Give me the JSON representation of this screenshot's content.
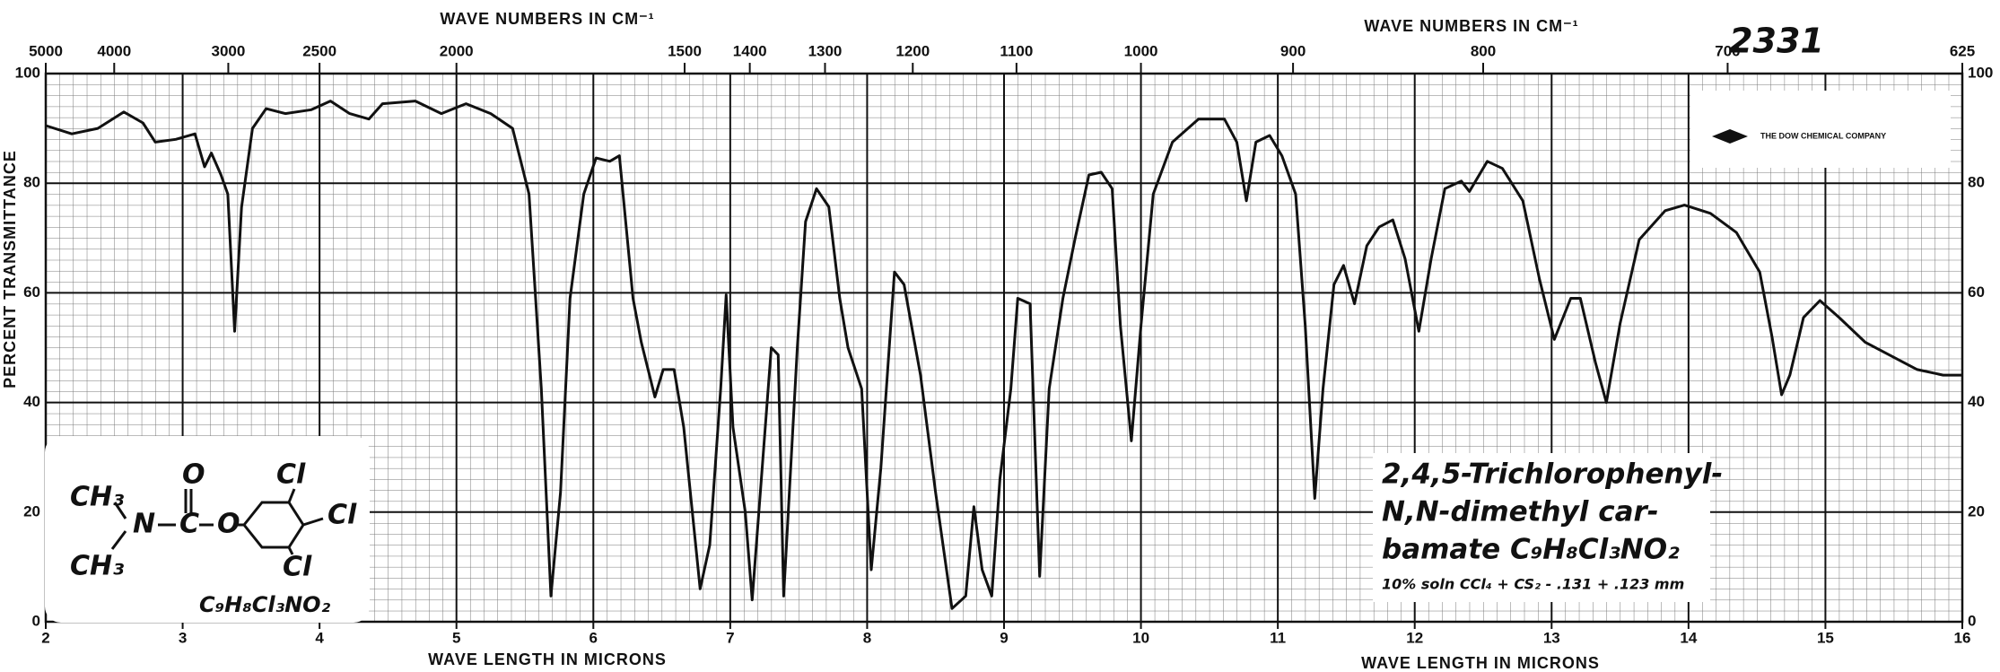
{
  "chart_data": {
    "type": "line",
    "x2labels": [
      "WAVE NUMBERS IN CM⁻¹",
      "WAVE NUMBERS IN CM⁻¹"
    ],
    "xlabels": [
      "WAVE LENGTH IN MICRONS",
      "WAVE LENGTH IN MICRONS"
    ],
    "ylabel": "PERCENT TRANSMITTANCE",
    "xlim": [
      2,
      16
    ],
    "xticks": [
      2,
      3,
      4,
      5,
      6,
      7,
      8,
      9,
      10,
      11,
      12,
      13,
      14,
      15,
      16
    ],
    "x2ticks": [
      5000,
      4000,
      3000,
      2500,
      2000,
      1500,
      1400,
      1300,
      1200,
      1100,
      1000,
      900,
      800,
      700,
      625
    ],
    "ylim": [
      0,
      100
    ],
    "yticks": [
      0,
      20,
      40,
      60,
      80,
      100
    ],
    "grid": true,
    "color": "#111111",
    "x": [
      2.0,
      2.19,
      2.38,
      2.57,
      2.71,
      2.8,
      2.95,
      3.09,
      3.16,
      3.21,
      3.28,
      3.33,
      3.38,
      3.43,
      3.51,
      3.61,
      3.75,
      3.94,
      4.08,
      4.22,
      4.36,
      4.46,
      4.7,
      4.89,
      5.07,
      5.25,
      5.41,
      5.53,
      5.62,
      5.69,
      5.76,
      5.83,
      5.93,
      6.02,
      6.12,
      6.19,
      6.29,
      6.35,
      6.45,
      6.51,
      6.59,
      6.66,
      6.78,
      6.85,
      6.93,
      6.97,
      7.02,
      7.11,
      7.16,
      7.22,
      7.3,
      7.35,
      7.39,
      7.49,
      7.55,
      7.63,
      7.72,
      7.8,
      7.86,
      7.96,
      8.03,
      8.1,
      8.2,
      8.27,
      8.39,
      8.5,
      8.62,
      8.72,
      8.78,
      8.84,
      8.91,
      8.97,
      9.05,
      9.1,
      9.19,
      9.26,
      9.33,
      9.43,
      9.52,
      9.62,
      9.71,
      9.79,
      9.85,
      9.93,
      10.0,
      10.09,
      10.23,
      10.42,
      10.61,
      10.7,
      10.77,
      10.84,
      10.94,
      11.03,
      11.13,
      11.2,
      11.27,
      11.33,
      11.41,
      11.48,
      11.56,
      11.65,
      11.74,
      11.84,
      11.93,
      12.03,
      12.12,
      12.22,
      12.34,
      12.4,
      12.53,
      12.64,
      12.79,
      12.91,
      13.02,
      13.14,
      13.21,
      13.32,
      13.4,
      13.5,
      13.64,
      13.83,
      13.97,
      14.16,
      14.35,
      14.52,
      14.61,
      14.68,
      14.74,
      14.84,
      14.96,
      15.1,
      15.29,
      15.48,
      15.67,
      15.86,
      16.0
    ],
    "values": [
      90.5,
      89,
      90,
      93,
      91,
      87.5,
      88,
      89,
      83,
      85.5,
      81.5,
      78,
      53,
      75.6,
      90,
      93.6,
      92.7,
      93.4,
      95,
      92.7,
      91.7,
      94.5,
      95,
      92.7,
      94.5,
      92.7,
      90,
      78,
      42.5,
      4.7,
      23.6,
      59,
      78,
      84.6,
      84,
      85,
      59,
      51,
      41,
      46,
      46,
      35.5,
      6,
      14,
      42.5,
      59.6,
      35.5,
      20,
      4,
      23.6,
      50,
      48.7,
      4.7,
      50,
      73,
      79,
      75.7,
      59,
      50,
      42.5,
      9.5,
      28,
      63.8,
      61.5,
      45,
      23.6,
      2.4,
      4.7,
      21,
      9.5,
      4.7,
      26,
      42.5,
      59,
      58,
      8.3,
      42.5,
      59,
      70,
      81.5,
      82,
      79,
      54,
      33,
      54,
      78,
      87.5,
      91.7,
      91.7,
      87.5,
      76.8,
      87.5,
      88.7,
      85,
      78,
      54,
      22.5,
      42.5,
      61.5,
      65,
      58,
      68.6,
      72,
      73.3,
      66.2,
      53,
      66.2,
      79,
      80.4,
      78.5,
      84,
      82.7,
      76.8,
      62.6,
      51.5,
      59,
      59,
      47.3,
      40,
      54.4,
      69.7,
      75,
      76,
      74.5,
      71,
      63.8,
      52,
      41.4,
      45,
      55.5,
      58.6,
      55.5,
      51,
      48.5,
      46,
      45,
      45
    ],
    "annotations": {
      "sample_id": "2331",
      "company": "THE DOW CHEMICAL COMPANY",
      "compound": [
        "2,4,5-Trichlorophenyl-",
        "N,N-dimethyl car-",
        "bamate C₉H₈Cl₃NO₂",
        "10% soln CCl₄ + CS₂ - .131 + .123 mm"
      ],
      "structure": {
        "methyl": "CH₃",
        "nitrogen": "N",
        "carbon": "C",
        "carbonyl_oxygen": "O",
        "ester_oxygen": "O",
        "chlorine": "Cl",
        "formula": "C₉H₈Cl₃NO₂"
      }
    }
  }
}
